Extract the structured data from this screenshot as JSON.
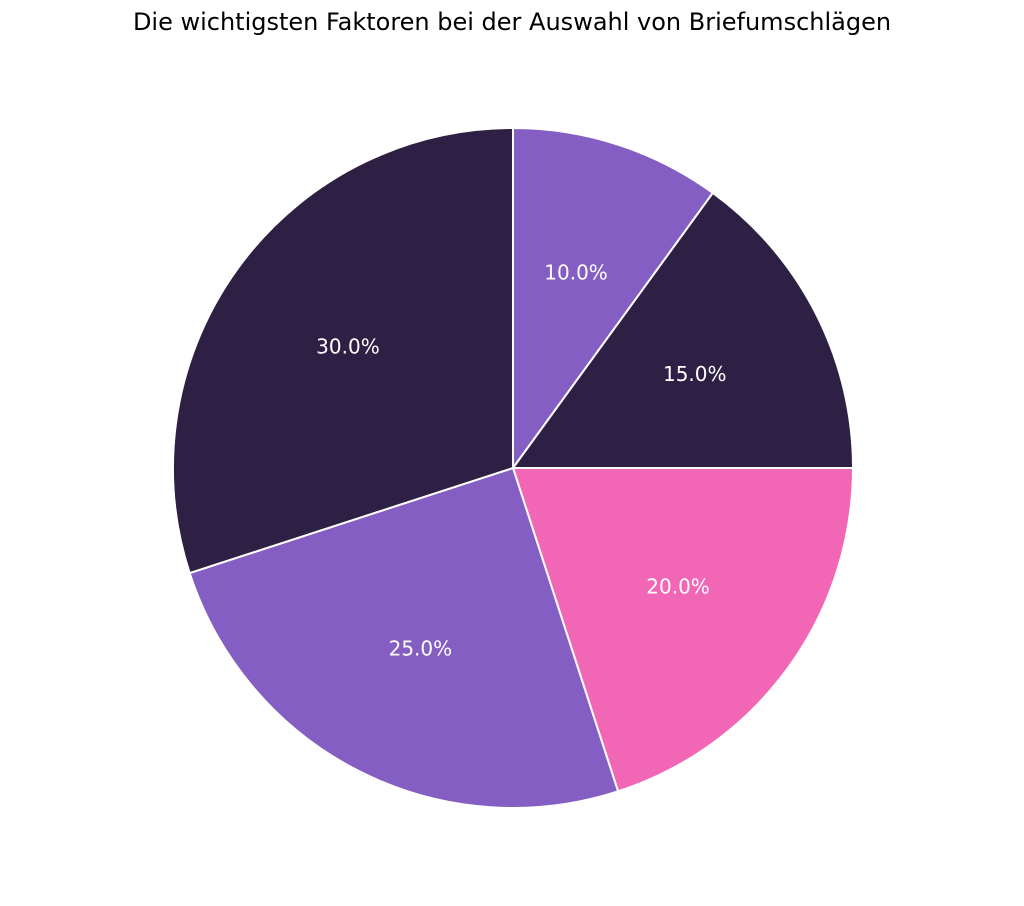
{
  "chart_data": {
    "type": "pie",
    "title": "Die wichtigsten Faktoren bei der Auswahl von Briefumschlägen",
    "values": [
      10,
      15,
      20,
      25,
      30
    ],
    "labels": [
      "10.0%",
      "15.0%",
      "20.0%",
      "25.0%",
      "30.0%"
    ],
    "colors": [
      "#845EC2",
      "#2E1F44",
      "#F267B5",
      "#845EC2",
      "#2E1F44"
    ],
    "start_angle_deg": 90,
    "direction": "clockwise",
    "legend": "none"
  }
}
